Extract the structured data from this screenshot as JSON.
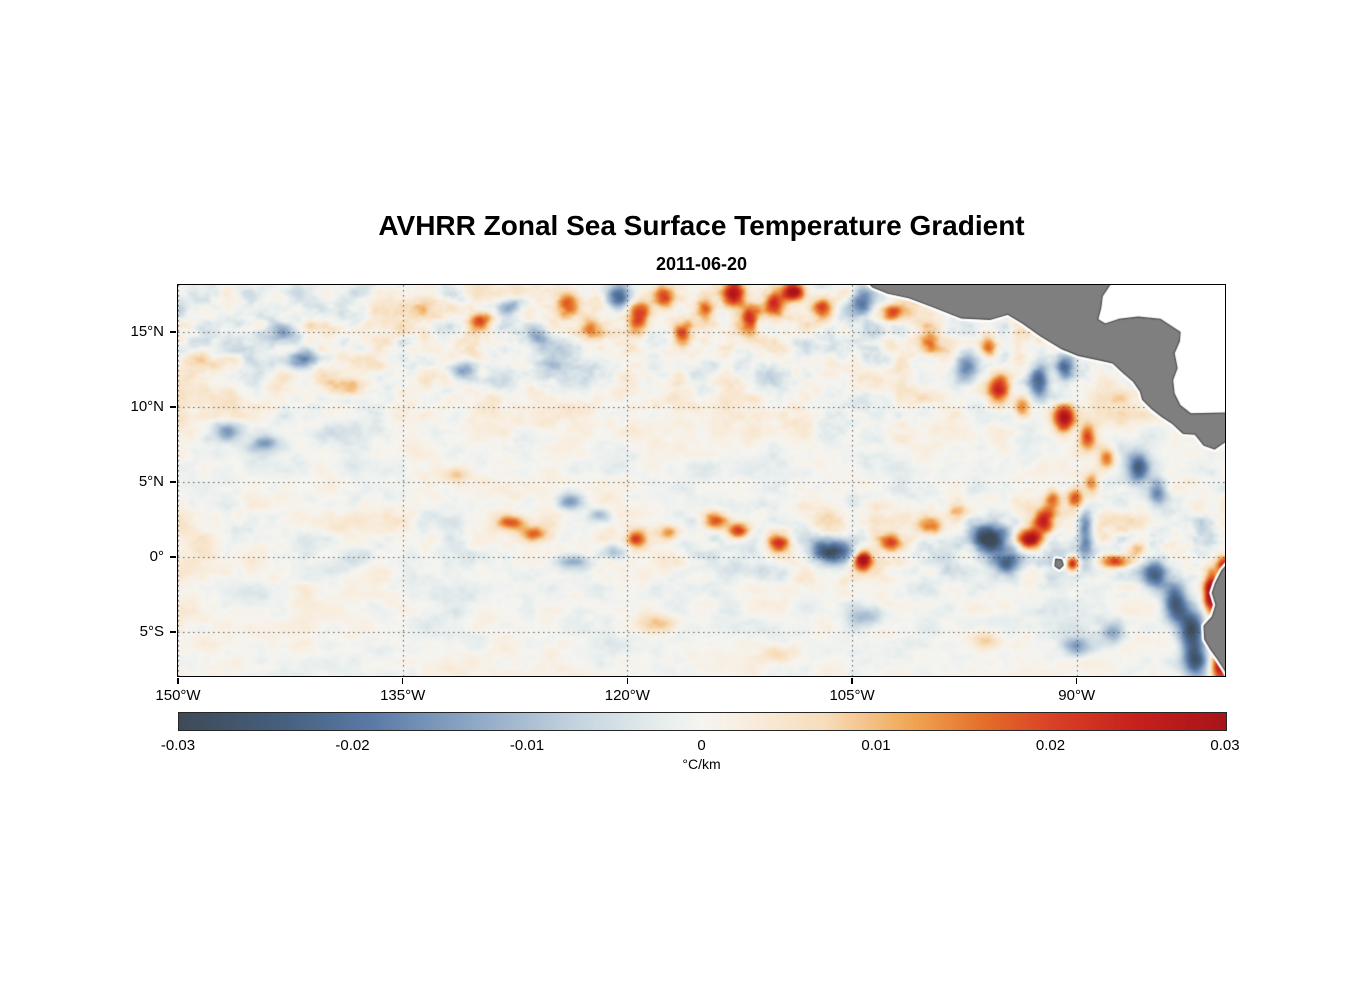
{
  "figure": {
    "background": "#ffffff"
  },
  "chart_data": {
    "type": "heatmap",
    "title": "AVHRR Zonal Sea Surface Temperature Gradient",
    "subtitle": "2011-06-20",
    "xlabel": "",
    "ylabel": "",
    "x_ticks": [
      "150°W",
      "135°W",
      "120°W",
      "105°W",
      "90°W"
    ],
    "x_tick_values": [
      -150,
      -135,
      -120,
      -105,
      -90
    ],
    "y_ticks": [
      "15°N",
      "10°N",
      "5°N",
      "0°",
      "5°S"
    ],
    "y_tick_values": [
      15,
      10,
      5,
      0,
      -5
    ],
    "lon_range": [
      -150,
      -80.1
    ],
    "lat_range": [
      -7.95,
      18.15
    ],
    "grid_on": true,
    "grid_color": "rgba(64,64,64,0.85)",
    "land_color": "#7f7f7f",
    "coast_color": "#4d4d4d",
    "colorbar": {
      "min": -0.03,
      "max": 0.03,
      "ticks": [
        "-0.03",
        "-0.02",
        "-0.01",
        "0",
        "0.01",
        "0.02",
        "0.03"
      ],
      "tick_values": [
        -0.03,
        -0.02,
        -0.01,
        0,
        0.01,
        0.02,
        0.03
      ],
      "label": "°C/km",
      "position": "bottom"
    },
    "colormap_stops": [
      [
        -0.03,
        "#3e4a57"
      ],
      [
        -0.024,
        "#46607f"
      ],
      [
        -0.019,
        "#5a7aa6"
      ],
      [
        -0.013,
        "#8fa9c6"
      ],
      [
        -0.007,
        "#c6d5e0"
      ],
      [
        -0.002,
        "#e9efee"
      ],
      [
        0.0,
        "#f5f4f0"
      ],
      [
        0.002,
        "#f8efe2"
      ],
      [
        0.007,
        "#f7ddbb"
      ],
      [
        0.012,
        "#f0a654"
      ],
      [
        0.016,
        "#e4702a"
      ],
      [
        0.02,
        "#da4125"
      ],
      [
        0.025,
        "#c5201c"
      ],
      [
        0.03,
        "#a81419"
      ]
    ],
    "field": {
      "units": "°C/km",
      "value_range": [
        -0.03,
        0.03
      ],
      "seed": 7,
      "base_amp": 0.0075,
      "large_amp": 0.006,
      "blobs": [
        [
          -143.0,
          14.8,
          -0.012,
          1.2,
          0.7
        ],
        [
          -141.5,
          13.2,
          -0.016,
          1.1,
          0.6
        ],
        [
          -138.5,
          11.2,
          0.011,
          1.0,
          0.6
        ],
        [
          -133.5,
          16.5,
          0.012,
          0.9,
          0.7
        ],
        [
          -129.8,
          15.8,
          0.018,
          0.8,
          0.7
        ],
        [
          -131.0,
          12.5,
          -0.015,
          0.9,
          0.6
        ],
        [
          -127.8,
          16.8,
          -0.012,
          1.0,
          0.6
        ],
        [
          -126.0,
          14.8,
          -0.014,
          0.9,
          0.7
        ],
        [
          -124.0,
          16.9,
          0.014,
          0.7,
          0.8
        ],
        [
          -122.4,
          15.2,
          0.012,
          0.7,
          0.7
        ],
        [
          -120.6,
          17.3,
          -0.023,
          0.8,
          0.9
        ],
        [
          -119.2,
          16.0,
          0.02,
          0.7,
          1.0
        ],
        [
          -117.6,
          17.4,
          0.018,
          0.7,
          0.8
        ],
        [
          -116.3,
          14.8,
          0.016,
          0.6,
          0.9
        ],
        [
          -114.8,
          16.6,
          0.014,
          0.6,
          0.8
        ],
        [
          -112.9,
          17.5,
          0.026,
          0.7,
          0.9
        ],
        [
          -111.8,
          15.6,
          0.02,
          0.6,
          1.0
        ],
        [
          -110.2,
          16.8,
          0.018,
          0.6,
          0.8
        ],
        [
          -108.9,
          17.7,
          0.032,
          0.8,
          0.7
        ],
        [
          -107.0,
          16.7,
          0.02,
          0.7,
          0.8
        ],
        [
          -104.3,
          17.2,
          -0.021,
          0.8,
          0.9
        ],
        [
          -102.2,
          16.2,
          0.016,
          0.7,
          0.6
        ],
        [
          -99.8,
          14.2,
          0.014,
          0.7,
          0.7
        ],
        [
          -97.5,
          12.6,
          -0.02,
          0.8,
          0.9
        ],
        [
          -95.9,
          14.0,
          0.016,
          0.6,
          0.8
        ],
        [
          -95.2,
          11.2,
          0.022,
          0.7,
          1.0
        ],
        [
          -93.6,
          10.1,
          0.02,
          0.6,
          0.9
        ],
        [
          -92.5,
          11.9,
          -0.022,
          0.7,
          1.0
        ],
        [
          -90.8,
          12.6,
          -0.018,
          0.6,
          0.9
        ],
        [
          -90.8,
          9.2,
          0.028,
          0.7,
          1.0
        ],
        [
          -89.3,
          8.0,
          0.022,
          0.6,
          0.9
        ],
        [
          -88.0,
          6.6,
          0.016,
          0.6,
          0.8
        ],
        [
          -85.9,
          5.9,
          -0.022,
          0.7,
          1.0
        ],
        [
          -84.6,
          4.3,
          -0.018,
          0.6,
          0.9
        ],
        [
          -146.7,
          8.4,
          -0.014,
          1.0,
          0.6
        ],
        [
          -144.2,
          7.6,
          -0.012,
          0.9,
          0.5
        ],
        [
          -131.5,
          5.5,
          0.01,
          1.0,
          0.5
        ],
        [
          -127.8,
          2.3,
          0.018,
          1.0,
          0.5
        ],
        [
          -126.2,
          1.5,
          0.016,
          0.9,
          0.5
        ],
        [
          -123.8,
          3.7,
          -0.016,
          0.9,
          0.6
        ],
        [
          -121.9,
          2.8,
          -0.013,
          0.8,
          0.5
        ],
        [
          -123.5,
          -0.3,
          -0.014,
          1.1,
          0.5
        ],
        [
          -120.9,
          0.3,
          -0.012,
          0.9,
          0.5
        ],
        [
          -119.4,
          1.2,
          0.022,
          0.7,
          0.6
        ],
        [
          -117.2,
          1.6,
          0.014,
          0.8,
          0.5
        ],
        [
          -114.2,
          2.4,
          0.02,
          0.8,
          0.6
        ],
        [
          -112.6,
          1.7,
          0.022,
          0.7,
          0.6
        ],
        [
          -109.8,
          0.9,
          0.024,
          0.8,
          0.6
        ],
        [
          -106.3,
          0.4,
          -0.028,
          1.4,
          0.8
        ],
        [
          -104.3,
          -0.2,
          0.034,
          0.6,
          0.6
        ],
        [
          -102.4,
          0.9,
          0.018,
          0.8,
          0.6
        ],
        [
          -99.8,
          2.0,
          0.014,
          0.9,
          0.6
        ],
        [
          -98.0,
          3.1,
          0.016,
          0.7,
          0.6
        ],
        [
          -95.8,
          1.2,
          -0.03,
          1.2,
          1.0
        ],
        [
          -94.5,
          -0.4,
          -0.022,
          1.0,
          0.8
        ],
        [
          -93.1,
          1.2,
          0.028,
          0.8,
          0.7
        ],
        [
          -92.2,
          2.4,
          0.024,
          0.7,
          0.8
        ],
        [
          -91.6,
          3.8,
          0.018,
          0.6,
          0.8
        ],
        [
          -90.1,
          3.9,
          0.018,
          0.6,
          0.7
        ],
        [
          -89.0,
          4.9,
          0.016,
          0.5,
          0.7
        ],
        [
          -89.4,
          1.6,
          -0.022,
          0.5,
          1.6
        ],
        [
          -90.3,
          -0.4,
          0.03,
          0.45,
          0.5
        ],
        [
          -87.4,
          -0.3,
          0.022,
          1.0,
          0.5
        ],
        [
          -86.0,
          0.6,
          0.014,
          0.7,
          0.5
        ],
        [
          -84.8,
          -1.2,
          -0.026,
          0.9,
          1.0
        ],
        [
          -83.4,
          -3.0,
          -0.028,
          0.8,
          1.4
        ],
        [
          -82.3,
          -4.9,
          -0.03,
          0.9,
          1.6
        ],
        [
          -81.0,
          -2.3,
          0.036,
          0.5,
          1.3
        ],
        [
          -80.2,
          -0.6,
          0.024,
          0.5,
          0.6
        ],
        [
          -80.4,
          -7.3,
          0.028,
          0.6,
          1.0
        ],
        [
          -82.0,
          -7.0,
          -0.024,
          0.8,
          1.0
        ],
        [
          -118.0,
          -4.5,
          0.01,
          1.2,
          0.7
        ],
        [
          -104.0,
          -4.0,
          -0.01,
          1.1,
          0.7
        ],
        [
          -96.0,
          -5.5,
          0.01,
          1.0,
          0.6
        ],
        [
          -90.0,
          -6.0,
          -0.012,
          1.0,
          0.7
        ],
        [
          -87.5,
          -5.0,
          -0.014,
          0.8,
          0.8
        ],
        [
          -110.0,
          -6.5,
          0.009,
          1.1,
          0.6
        ]
      ]
    },
    "geo": {
      "central_america": [
        [
          -104.2,
          18.6
        ],
        [
          -103.6,
          18.0
        ],
        [
          -102.6,
          17.6
        ],
        [
          -101.2,
          17.3
        ],
        [
          -99.6,
          16.7
        ],
        [
          -97.7,
          15.95
        ],
        [
          -95.8,
          15.85
        ],
        [
          -94.6,
          16.2
        ],
        [
          -93.6,
          15.6
        ],
        [
          -92.4,
          14.75
        ],
        [
          -91.0,
          13.9
        ],
        [
          -89.9,
          13.45
        ],
        [
          -88.5,
          13.15
        ],
        [
          -87.6,
          12.95
        ],
        [
          -86.9,
          12.3
        ],
        [
          -86.2,
          11.7
        ],
        [
          -85.75,
          11.05
        ],
        [
          -85.6,
          10.5
        ],
        [
          -85.0,
          9.9
        ],
        [
          -84.3,
          9.35
        ],
        [
          -83.6,
          8.9
        ],
        [
          -82.9,
          8.25
        ],
        [
          -82.1,
          8.2
        ],
        [
          -81.5,
          7.45
        ],
        [
          -80.8,
          7.2
        ],
        [
          -80.3,
          7.55
        ],
        [
          -79.8,
          7.9
        ],
        [
          -79.8,
          9.6
        ],
        [
          -82.4,
          9.55
        ],
        [
          -83.1,
          10.1
        ],
        [
          -83.5,
          10.9
        ],
        [
          -83.6,
          11.8
        ],
        [
          -83.3,
          12.6
        ],
        [
          -83.5,
          13.6
        ],
        [
          -83.15,
          14.4
        ],
        [
          -83.1,
          15.0
        ],
        [
          -84.4,
          15.85
        ],
        [
          -85.9,
          16.0
        ],
        [
          -87.2,
          15.85
        ],
        [
          -88.1,
          15.55
        ],
        [
          -88.6,
          15.85
        ],
        [
          -88.4,
          16.6
        ],
        [
          -88.3,
          17.4
        ],
        [
          -87.5,
          18.6
        ]
      ],
      "caribbean": [
        [
          -87.5,
          18.6
        ],
        [
          -88.3,
          17.4
        ],
        [
          -88.4,
          16.6
        ],
        [
          -88.6,
          15.85
        ],
        [
          -88.1,
          15.55
        ],
        [
          -87.2,
          15.85
        ],
        [
          -85.9,
          16.0
        ],
        [
          -84.4,
          15.85
        ],
        [
          -83.1,
          15.0
        ],
        [
          -83.15,
          14.4
        ],
        [
          -83.5,
          13.6
        ],
        [
          -83.3,
          12.6
        ],
        [
          -83.6,
          11.8
        ],
        [
          -83.5,
          10.9
        ],
        [
          -83.1,
          10.1
        ],
        [
          -82.4,
          9.55
        ],
        [
          -79.8,
          9.6
        ],
        [
          -79.6,
          18.6
        ]
      ],
      "south_america": [
        [
          -79.7,
          -0.2
        ],
        [
          -80.3,
          -0.9
        ],
        [
          -80.75,
          -1.8
        ],
        [
          -80.95,
          -2.4
        ],
        [
          -80.7,
          -3.2
        ],
        [
          -80.95,
          -4.0
        ],
        [
          -81.5,
          -4.6
        ],
        [
          -81.45,
          -5.5
        ],
        [
          -81.1,
          -6.1
        ],
        [
          -80.6,
          -6.8
        ],
        [
          -80.15,
          -7.5
        ],
        [
          -79.7,
          -8.3
        ]
      ],
      "galapagos": [
        [
          -91.4,
          -0.15
        ],
        [
          -91.0,
          -0.2
        ],
        [
          -90.9,
          -0.55
        ],
        [
          -91.15,
          -0.8
        ],
        [
          -91.45,
          -0.6
        ]
      ]
    }
  }
}
